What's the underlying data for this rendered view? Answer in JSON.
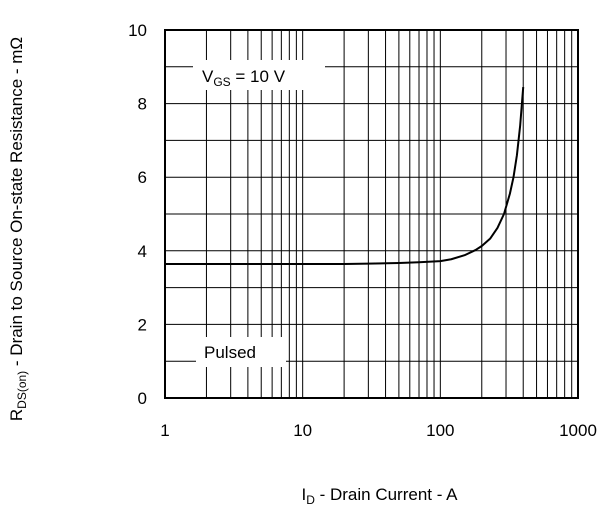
{
  "chart_data": {
    "type": "line",
    "x_scale": "log",
    "xlim": [
      1,
      1000
    ],
    "ylim": [
      0,
      10
    ],
    "x_ticks": [
      1,
      10,
      100,
      1000
    ],
    "x_tick_labels": [
      "1",
      "10",
      "100",
      "1000"
    ],
    "y_ticks": [
      0,
      2,
      4,
      6,
      8,
      10
    ],
    "y_tick_labels": [
      "0",
      "2",
      "4",
      "6",
      "8",
      "10"
    ],
    "grid": true,
    "xlabel": {
      "main": "I",
      "sub": "D",
      "rest": " - Drain Current - A"
    },
    "ylabel": {
      "main": "R",
      "sub": "DS(on)",
      "rest": " - Drain to Source On-state Resistance - mΩ"
    },
    "annotations": {
      "vgs": {
        "main": "V",
        "sub": "GS",
        "rest": " = 10 V"
      },
      "pulsed": "Pulsed"
    },
    "series": [
      {
        "x": [
          1,
          2,
          5,
          10,
          20,
          30,
          50,
          70,
          100,
          120,
          150,
          180,
          200,
          230,
          260,
          290,
          320,
          340,
          360,
          380,
          400
        ],
        "y": [
          3.64,
          3.64,
          3.64,
          3.64,
          3.64,
          3.65,
          3.67,
          3.69,
          3.72,
          3.77,
          3.88,
          4.02,
          4.13,
          4.33,
          4.62,
          5.0,
          5.55,
          6.0,
          6.6,
          7.4,
          8.45
        ]
      }
    ]
  }
}
